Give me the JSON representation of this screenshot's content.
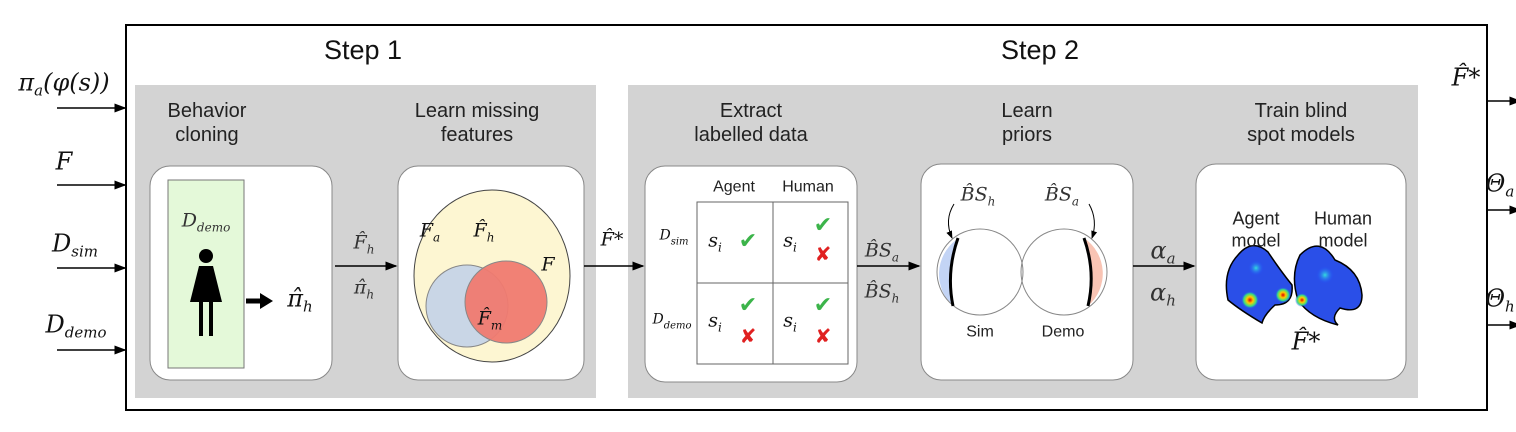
{
  "steps": [
    "Step 1",
    "Step 2"
  ],
  "inputs": [
    {
      "base": "π",
      "sub": "a",
      "tail": "(φ(s))"
    },
    {
      "base": "F",
      "sub": ""
    },
    {
      "base": "D",
      "sub": "sim"
    },
    {
      "base": "D",
      "sub": "demo"
    }
  ],
  "outputs": [
    {
      "base": "F̂*",
      "sub": ""
    },
    {
      "base": "Θ",
      "sub": "a"
    },
    {
      "base": "Θ",
      "sub": "h"
    }
  ],
  "stages": [
    {
      "title": [
        "Behavior",
        "cloning"
      ]
    },
    {
      "title": [
        "Learn missing",
        "features"
      ]
    },
    {
      "title": [
        "Extract",
        "labelled data"
      ]
    },
    {
      "title": [
        "Learn",
        "priors"
      ]
    },
    {
      "title": [
        "Train blind",
        "spot models"
      ]
    }
  ],
  "behavior_cloning": {
    "data": {
      "base": "D",
      "sub": "demo"
    },
    "policy": {
      "base": "π̂",
      "sub": "h"
    },
    "icon": "person-icon",
    "panel_color": "#e4f9d9"
  },
  "link1": [
    {
      "base": "F̂",
      "sub": "h"
    },
    {
      "base": "π̂",
      "sub": "h"
    }
  ],
  "venn": {
    "outer": {
      "base": "F",
      "sub": ""
    },
    "agent": {
      "base": "F",
      "sub": "a"
    },
    "human": {
      "base": "F̂",
      "sub": "h"
    },
    "missing": {
      "base": "F̂",
      "sub": "m"
    },
    "colors": {
      "outer": "#fdf6d2",
      "agent": "#c9d6e6",
      "human": "#f07a70"
    }
  },
  "link2": {
    "base": "F̂*",
    "sub": ""
  },
  "table": {
    "columns": [
      "Agent",
      "Human"
    ],
    "rows": [
      {
        "label": {
          "base": "D",
          "sub": "sim"
        },
        "cells": [
          {
            "s": "s",
            "sub": "i",
            "marks": [
              "✔"
            ]
          },
          {
            "s": "s",
            "sub": "i",
            "marks": [
              "✔",
              "✘"
            ]
          }
        ]
      },
      {
        "label": {
          "base": "D",
          "sub": "demo"
        },
        "cells": [
          {
            "s": "s",
            "sub": "i",
            "marks": [
              "✔",
              "✘"
            ]
          },
          {
            "s": "s",
            "sub": "i",
            "marks": [
              "✔",
              "✘"
            ]
          }
        ]
      }
    ]
  },
  "link3": [
    {
      "base": "B̂S",
      "sub": "a"
    },
    {
      "base": "B̂S",
      "sub": "h"
    }
  ],
  "priors": {
    "left": {
      "label": {
        "base": "B̂S",
        "sub": "h"
      },
      "caption": "Sim",
      "color": "#c3d4f5"
    },
    "right": {
      "label": {
        "base": "B̂S",
        "sub": "a"
      },
      "caption": "Demo",
      "color": "#f9c4b4"
    }
  },
  "link4": [
    {
      "base": "α",
      "sub": "a"
    },
    {
      "base": "α",
      "sub": "h"
    }
  ],
  "models": {
    "agent": [
      "Agent",
      "model"
    ],
    "human": [
      "Human",
      "model"
    ],
    "features": {
      "base": "F̂*",
      "sub": ""
    }
  },
  "colors": {
    "panel": "#d3d3d3",
    "frame": "#000000"
  }
}
